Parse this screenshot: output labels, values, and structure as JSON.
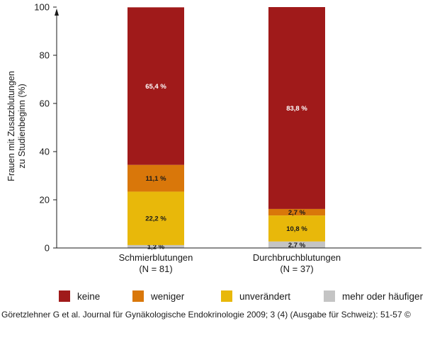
{
  "chart_data": {
    "type": "bar",
    "stacked": true,
    "ylabel": "Frauen mit Zusatzblutungen\nzu Studienbeginn (%)",
    "ylim": [
      0,
      100
    ],
    "yticks": [
      "0",
      "20",
      "40",
      "60",
      "80",
      "100"
    ],
    "categories": [
      {
        "name": "Schmierblutungen",
        "n": "(N = 81)"
      },
      {
        "name": "Durchbruchblutungen",
        "n": "(N = 37)"
      }
    ],
    "series": [
      {
        "name": "mehr oder häufiger",
        "color": "#c4c4c4",
        "label_color": "#1a1a1a",
        "values": [
          1.2,
          2.7
        ],
        "labels": [
          "1,2 %",
          "2,7 %"
        ]
      },
      {
        "name": "unverändert",
        "color": "#e8b80a",
        "label_color": "#1a1a1a",
        "values": [
          22.2,
          10.8
        ],
        "labels": [
          "22,2 %",
          "10,8 %"
        ]
      },
      {
        "name": "weniger",
        "color": "#d9770a",
        "label_color": "#1a1a1a",
        "values": [
          11.1,
          2.7
        ],
        "labels": [
          "11,1 %",
          "2,7 %"
        ]
      },
      {
        "name": "keine",
        "color": "#a01a1a",
        "label_color": "#ffffff",
        "values": [
          65.4,
          83.8
        ],
        "labels": [
          "65,4 %",
          "83,8 %"
        ]
      }
    ],
    "legend_position": "bottom"
  },
  "legend_order": [
    "keine",
    "weniger",
    "unverändert",
    "mehr oder häufiger"
  ],
  "citation": "Göretzlehner G et al. Journal für Gynäkologische Endokrinologie 2009; 3 (4) (Ausgabe für Schweiz): 51-57 ©"
}
